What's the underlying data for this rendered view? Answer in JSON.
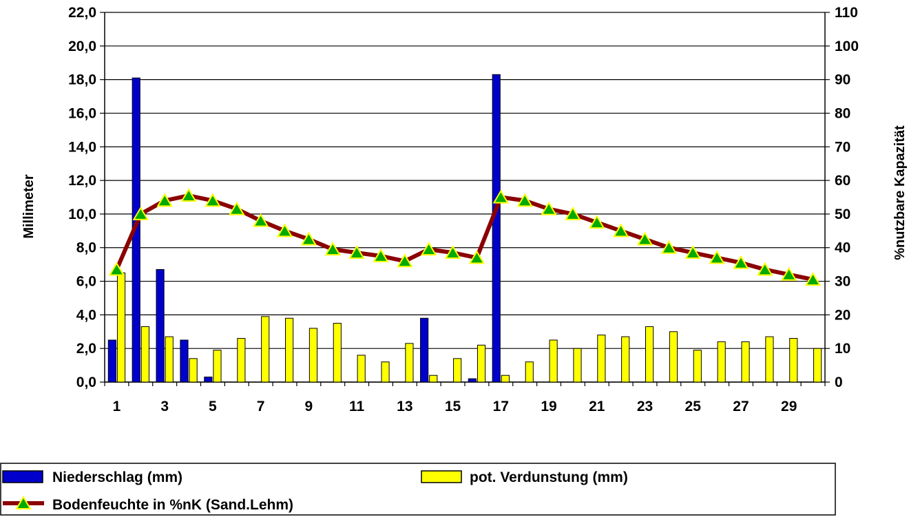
{
  "chart_data": {
    "type": "bar",
    "x": [
      1,
      2,
      3,
      4,
      5,
      6,
      7,
      8,
      9,
      10,
      11,
      12,
      13,
      14,
      15,
      16,
      17,
      18,
      19,
      20,
      21,
      22,
      23,
      24,
      25,
      26,
      27,
      28,
      29,
      30
    ],
    "x_tick_labels": [
      "1",
      "3",
      "5",
      "7",
      "9",
      "11",
      "13",
      "15",
      "17",
      "19",
      "21",
      "23",
      "25",
      "27",
      "29"
    ],
    "ylabel": "Millimeter",
    "y2label": "%nutzbare Kapazität",
    "ylim": [
      0,
      22
    ],
    "y2lim": [
      0,
      110
    ],
    "y_tick_labels": [
      "0,0",
      "2,0",
      "4,0",
      "6,0",
      "8,0",
      "10,0",
      "12,0",
      "14,0",
      "16,0",
      "18,0",
      "20,0",
      "22,0"
    ],
    "y2_tick_labels": [
      "0",
      "10",
      "20",
      "30",
      "40",
      "50",
      "60",
      "70",
      "80",
      "90",
      "100",
      "110"
    ],
    "grid": true,
    "legend_position": "bottom",
    "series": [
      {
        "name": "Niederschlag (mm)",
        "type": "bar",
        "axis": "left",
        "color": "#0000cc",
        "values": [
          2.5,
          18.1,
          6.7,
          2.5,
          0.3,
          0,
          0,
          0,
          0,
          0,
          0,
          0,
          0,
          3.8,
          0,
          0.2,
          18.3,
          0,
          0,
          0,
          0,
          0,
          0,
          0,
          0,
          0,
          0,
          0,
          0,
          0
        ]
      },
      {
        "name": "pot. Verdunstung (mm)",
        "type": "bar",
        "axis": "left",
        "color": "#ffff00",
        "values": [
          6.5,
          3.3,
          2.7,
          1.4,
          1.9,
          2.6,
          3.9,
          3.8,
          3.2,
          3.5,
          1.6,
          1.2,
          2.3,
          0.4,
          1.4,
          2.2,
          0.4,
          1.2,
          2.5,
          2.0,
          2.8,
          2.7,
          3.3,
          3.0,
          1.9,
          2.4,
          2.4,
          2.7,
          2.6,
          2.0
        ]
      },
      {
        "name": "Bodenfeuchte in %nK (Sand.Lehm)",
        "type": "line",
        "axis": "right",
        "color": "#8b0000",
        "marker_color": "#00aa00",
        "values": [
          33.5,
          50,
          54,
          55.5,
          54,
          51.5,
          48,
          45,
          42.5,
          39.5,
          38.5,
          37.5,
          36,
          39.5,
          38.5,
          37,
          55,
          54,
          51.5,
          50,
          47.5,
          45,
          42.5,
          40,
          38.5,
          37,
          35.5,
          33.5,
          32,
          30.5
        ]
      }
    ]
  }
}
